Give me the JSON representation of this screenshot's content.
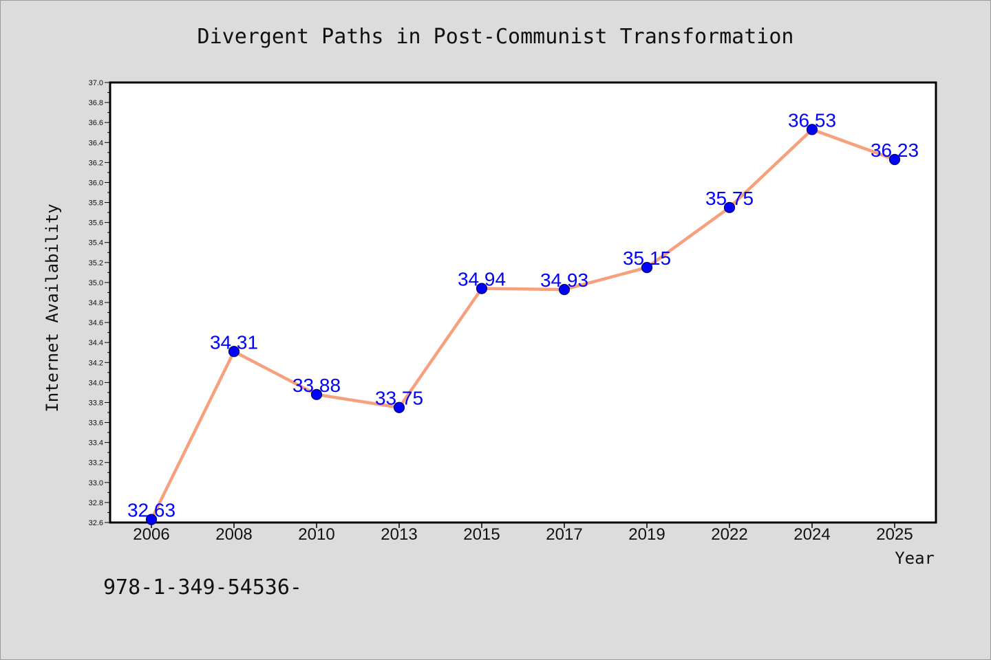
{
  "page": {
    "footer_code": "978-1-349-54536-"
  },
  "chart_data": {
    "type": "line",
    "title": "Divergent Paths in Post-Communist Transformation",
    "xlabel": "Year",
    "ylabel": "Internet Availability",
    "categories": [
      "2006",
      "2008",
      "2010",
      "2013",
      "2015",
      "2017",
      "2019",
      "2022",
      "2024",
      "2025"
    ],
    "series": [
      {
        "values": [
          32.63,
          34.31,
          33.88,
          33.75,
          34.94,
          34.93,
          35.15,
          35.75,
          36.53,
          36.23
        ]
      }
    ],
    "data_labels": [
      "32.63",
      "34.31",
      "33.88",
      "33.75",
      "34.94",
      "34.93",
      "35.15",
      "35.75",
      "36.53",
      "36.23"
    ],
    "ylim": [
      32.6,
      37.0
    ],
    "yticks": [
      "32.6",
      "32.8",
      "33.0",
      "33.2",
      "33.4",
      "33.6",
      "33.8",
      "34.0",
      "34.2",
      "34.4",
      "34.6",
      "34.8",
      "35.0",
      "35.2",
      "35.4",
      "35.6",
      "35.8",
      "36.0",
      "36.2",
      "36.4",
      "36.6",
      "36.8",
      "37.0"
    ],
    "grid": false,
    "legend": "none",
    "colors": {
      "line": "#f7a07e",
      "marker": "#0000ff",
      "marker_edge": "#00005a",
      "data_label": "#0000ff",
      "plot_background": "#ffffff",
      "page_background": "#dcdcdc"
    }
  }
}
